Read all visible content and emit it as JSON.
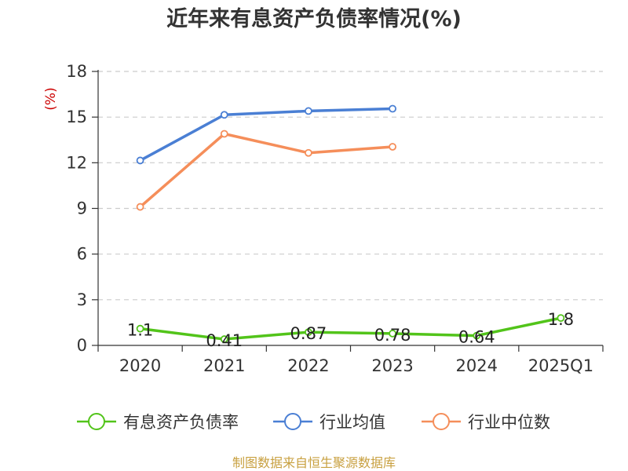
{
  "chart_data": {
    "type": "line",
    "title": "近年来有息资产负债率情况(%)",
    "ylabel": "(%)",
    "xlabel": "",
    "categories": [
      "2020",
      "2021",
      "2022",
      "2023",
      "2024",
      "2025Q1"
    ],
    "ylim": [
      0,
      18
    ],
    "yticks": [
      "0",
      "3",
      "6",
      "9",
      "12",
      "15",
      "18"
    ],
    "grid": "horizontal dashed",
    "legend_position": "bottom",
    "series": [
      {
        "name": "有息资产负债率",
        "color": "#52c41a",
        "values": [
          1.1,
          0.41,
          0.87,
          0.78,
          0.64,
          1.8
        ],
        "labels": [
          "1.1",
          "0.41",
          "0.87",
          "0.78",
          "0.64",
          "1.8"
        ]
      },
      {
        "name": "行业均值",
        "color": "#4a7fd4",
        "values": [
          12.15,
          15.15,
          15.4,
          15.55,
          null,
          null
        ]
      },
      {
        "name": "行业中位数",
        "color": "#f58e5a",
        "values": [
          9.1,
          13.9,
          12.65,
          13.05,
          null,
          null
        ]
      }
    ],
    "source": "制图数据来自恒生聚源数据库"
  }
}
